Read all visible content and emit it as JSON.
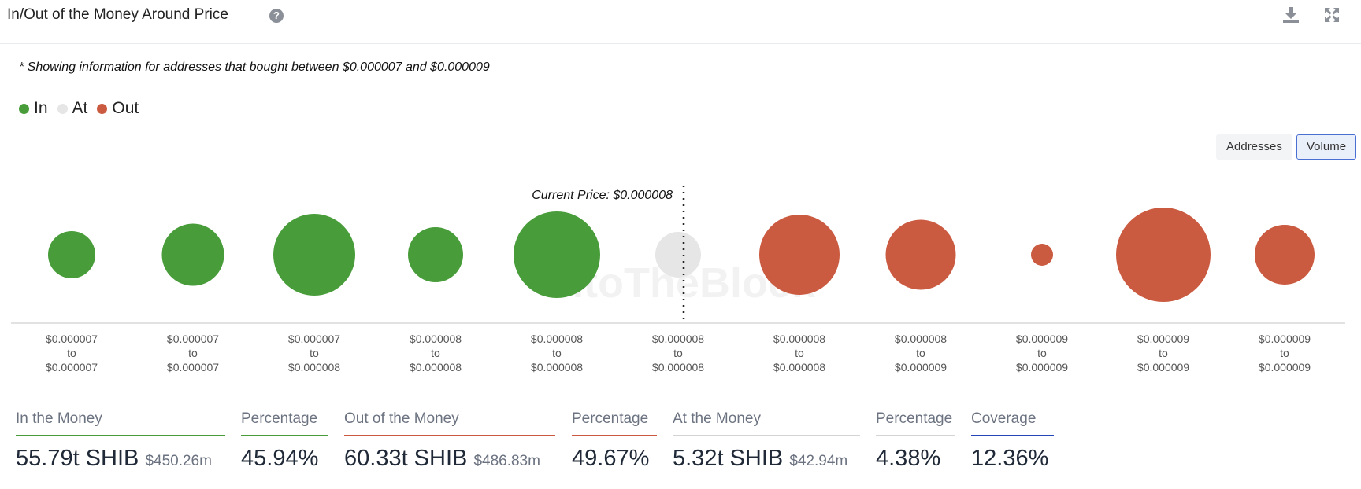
{
  "header": {
    "title": "In/Out of the Money Around Price",
    "help_glyph": "?",
    "download_icon": "download-icon",
    "expand_icon": "expand-icon"
  },
  "note": "* Showing information for addresses that bought between $0.000007 and $0.000009",
  "legend": [
    {
      "label": "In",
      "color": "#489d3a"
    },
    {
      "label": "At",
      "color": "#e6e6e6"
    },
    {
      "label": "Out",
      "color": "#ca5a40"
    }
  ],
  "toggle": {
    "addresses": "Addresses",
    "volume": "Volume",
    "active": "Volume"
  },
  "chart_data": {
    "type": "scatter",
    "annotation": "Current Price: $0.000008",
    "current_price_index": 5,
    "watermark": "IntoTheBlock",
    "categories": [
      {
        "low": "$0.000007",
        "high": "$0.000007",
        "status": "In",
        "relative_size": 60
      },
      {
        "low": "$0.000007",
        "high": "$0.000007",
        "status": "In",
        "relative_size": 79
      },
      {
        "low": "$0.000007",
        "high": "$0.000008",
        "status": "In",
        "relative_size": 104
      },
      {
        "low": "$0.000008",
        "high": "$0.000008",
        "status": "In",
        "relative_size": 70
      },
      {
        "low": "$0.000008",
        "high": "$0.000008",
        "status": "In",
        "relative_size": 110
      },
      {
        "low": "$0.000008",
        "high": "$0.000008",
        "status": "At",
        "relative_size": 58
      },
      {
        "low": "$0.000008",
        "high": "$0.000008",
        "status": "Out",
        "relative_size": 102
      },
      {
        "low": "$0.000008",
        "high": "$0.000009",
        "status": "Out",
        "relative_size": 89
      },
      {
        "low": "$0.000009",
        "high": "$0.000009",
        "status": "Out",
        "relative_size": 28
      },
      {
        "low": "$0.000009",
        "high": "$0.000009",
        "status": "Out",
        "relative_size": 120
      },
      {
        "low": "$0.000009",
        "high": "$0.000009",
        "status": "Out",
        "relative_size": 76
      }
    ],
    "range_separator": "to"
  },
  "metrics": {
    "in_money": {
      "label": "In the Money",
      "value": "55.79t SHIB",
      "usd": "$450.26m",
      "color": "#489d3a"
    },
    "in_pct": {
      "label": "Percentage",
      "value": "45.94%",
      "color": "#489d3a"
    },
    "out_money": {
      "label": "Out of the Money",
      "value": "60.33t SHIB",
      "usd": "$486.83m",
      "color": "#ca5a40"
    },
    "out_pct": {
      "label": "Percentage",
      "value": "49.67%",
      "color": "#ca5a40"
    },
    "at_money": {
      "label": "At the Money",
      "value": "5.32t SHIB",
      "usd": "$42.94m",
      "color": "#d4d4d4"
    },
    "at_pct": {
      "label": "Percentage",
      "value": "4.38%",
      "color": "#d4d4d4"
    },
    "coverage": {
      "label": "Coverage",
      "value": "12.36%",
      "color": "#2446b8"
    }
  }
}
